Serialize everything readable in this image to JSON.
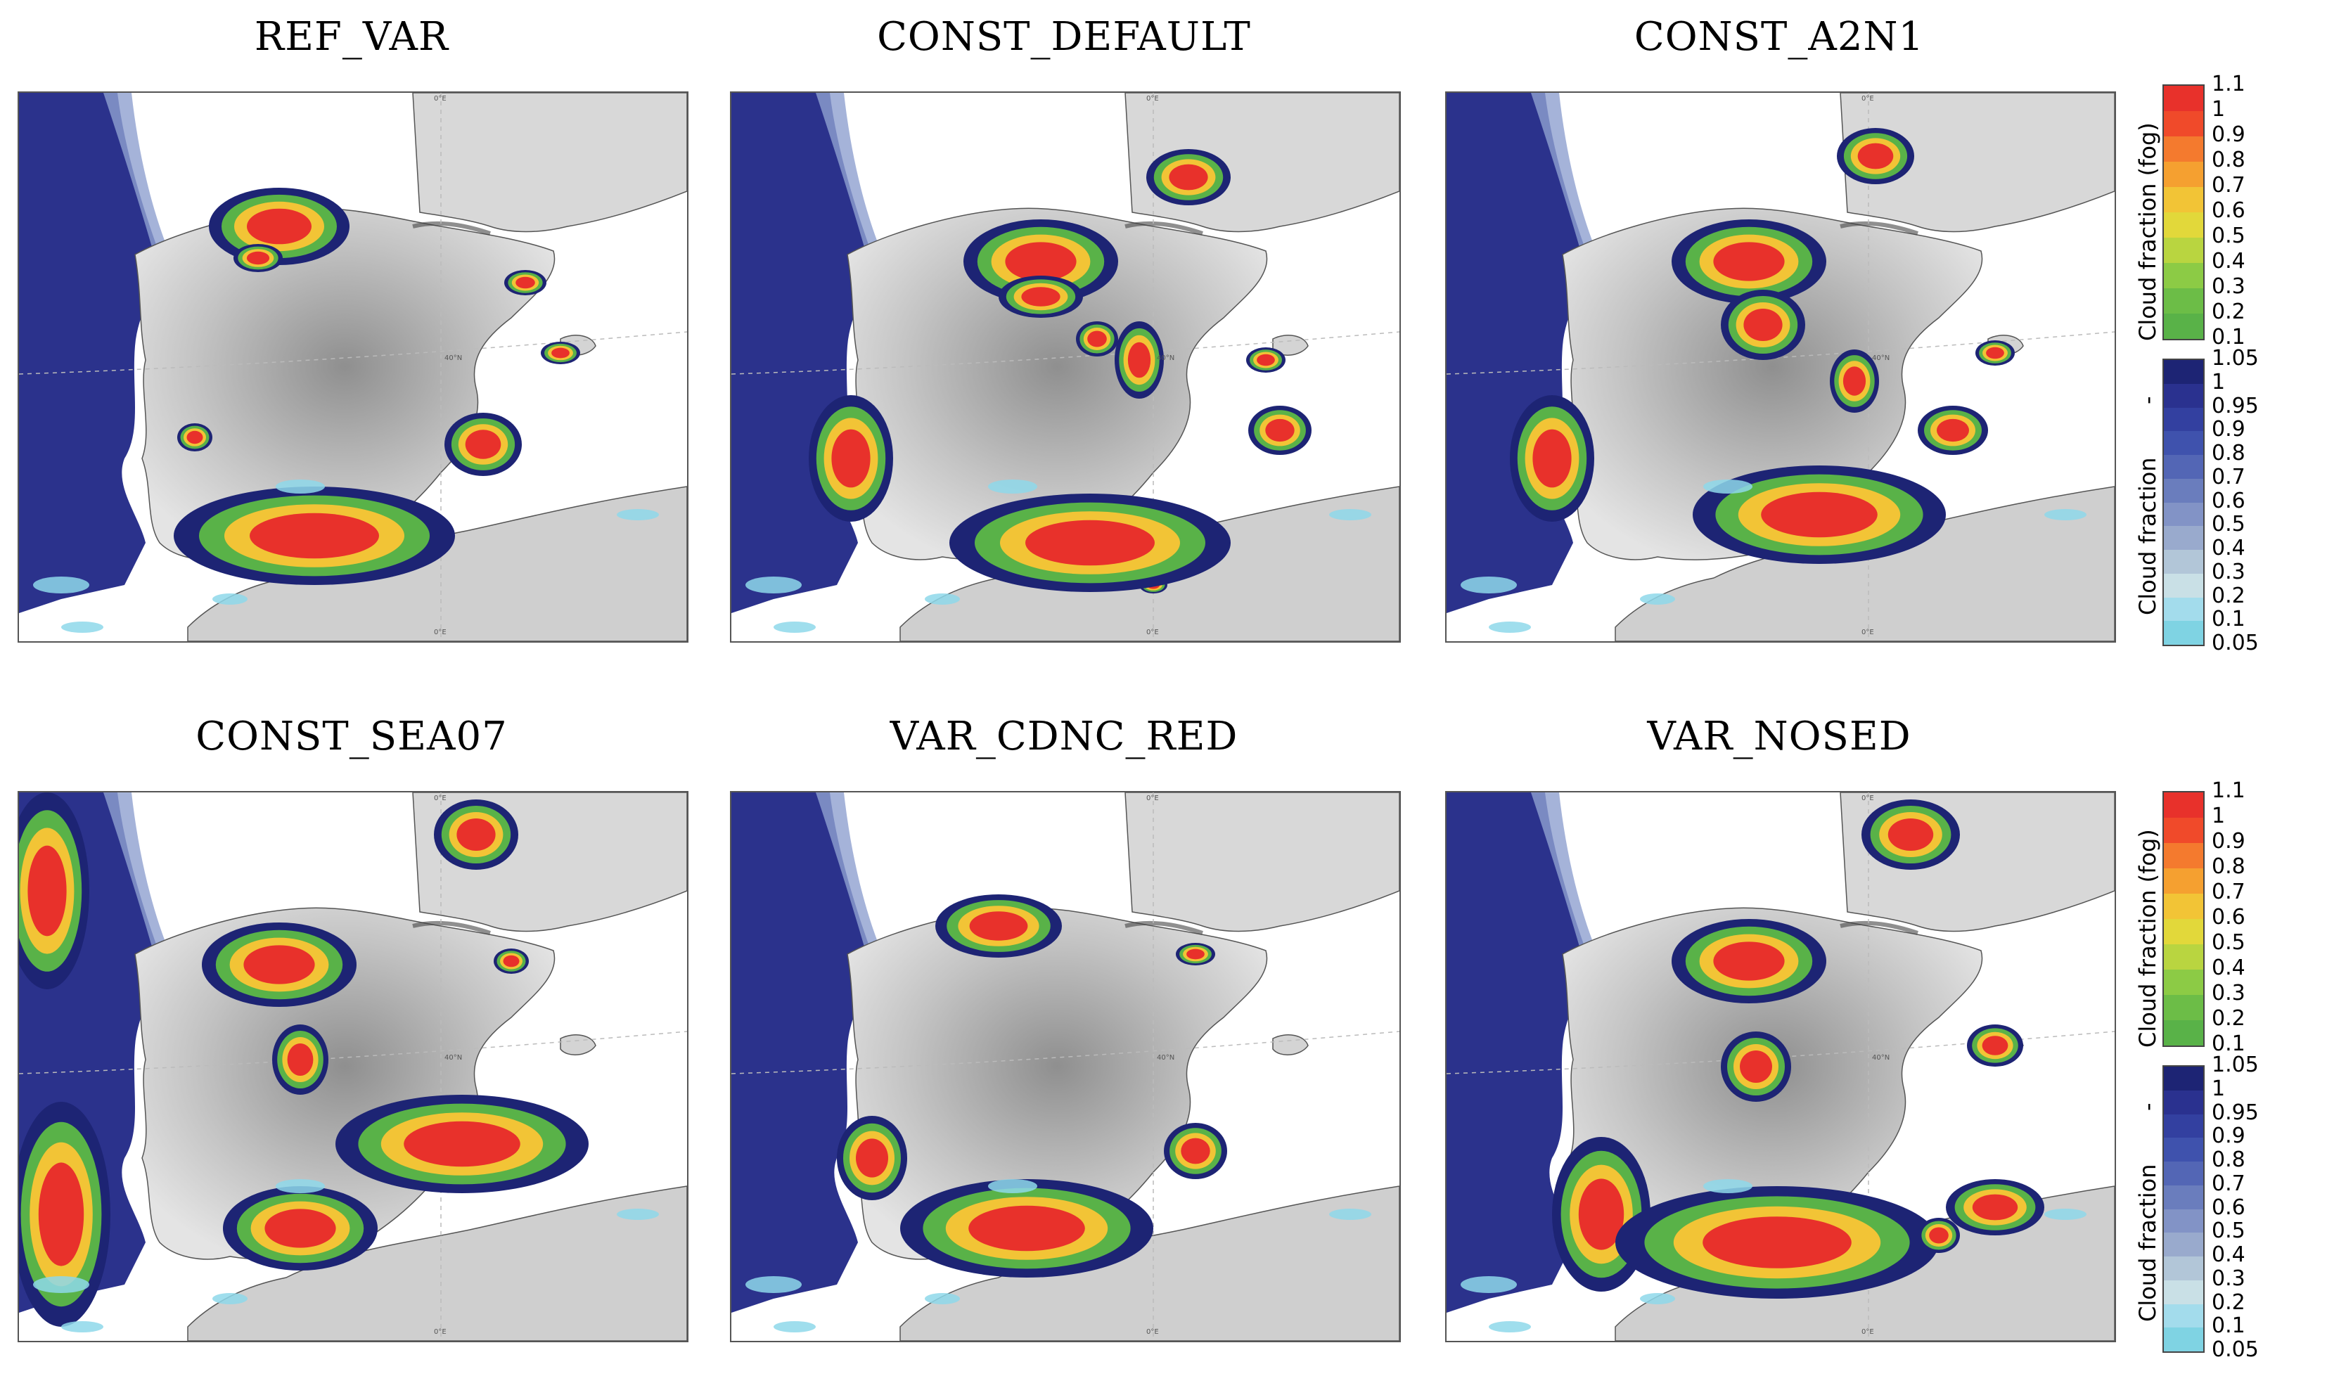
{
  "panels": [
    {
      "title": "REF_VAR"
    },
    {
      "title": "CONST_DEFAULT"
    },
    {
      "title": "CONST_A2N1"
    },
    {
      "title": "CONST_SEA07"
    },
    {
      "title": "VAR_CDNC_RED"
    },
    {
      "title": "VAR_NOSED"
    }
  ],
  "map_labels": {
    "lon_top": "0°E",
    "lon_bottom": "0°E",
    "lat_mid": "40°N"
  },
  "colorbar": {
    "fog_label": "Cloud fraction (fog)",
    "separator": "-",
    "cloud_label": "Cloud fraction",
    "fog_ticks": [
      "1.1",
      "1",
      "0.9",
      "0.8",
      "0.7",
      "0.6",
      "0.5",
      "0.4",
      "0.3",
      "0.2",
      "0.1"
    ],
    "cloud_ticks": [
      "1.05",
      "1",
      "0.95",
      "0.9",
      "0.8",
      "0.7",
      "0.6",
      "0.5",
      "0.4",
      "0.3",
      "0.2",
      "0.1",
      "0.05"
    ],
    "fog_colors": [
      "#e8312b",
      "#f04a2a",
      "#f47a2e",
      "#f5a030",
      "#f2c436",
      "#e2d83a",
      "#b9d540",
      "#8ccb45",
      "#6cbd47",
      "#59b248"
    ],
    "cloud_colors": [
      "#1d2474",
      "#2a318f",
      "#3340a0",
      "#3f52ad",
      "#5366b5",
      "#6a7dbd",
      "#8293c6",
      "#99aacd",
      "#b2c6d8",
      "#c9e0e6",
      "#a3dcec",
      "#7fd3e3"
    ]
  }
}
